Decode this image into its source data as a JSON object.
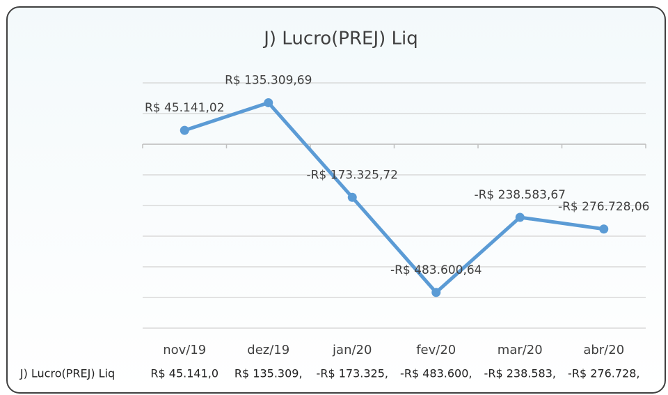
{
  "chart_data": {
    "type": "line",
    "title": "J) Lucro(PREJ) Liq",
    "categories": [
      "nov/19",
      "dez/19",
      "jan/20",
      "fev/20",
      "mar/20",
      "abr/20"
    ],
    "series": [
      {
        "name": "J) Lucro(PREJ) Liq",
        "color": "#5b9bd5",
        "values": [
          45141.02,
          135309.69,
          -173325.72,
          -483600.64,
          -238583.67,
          -276728.06
        ],
        "value_labels": [
          "R$ 45.141,02",
          "R$ 135.309,69",
          "-R$ 173.325,72",
          "-R$ 483.600,64",
          "-R$ 238.583,67",
          "-R$ 276.728,06"
        ]
      }
    ],
    "ylim": [
      -600000,
      200000
    ],
    "yticks": [
      -600000,
      -500000,
      -400000,
      -300000,
      -200000,
      -100000,
      0,
      100000,
      200000
    ],
    "grid": true,
    "data_table": [
      "R$ 45.141,0",
      "R$ 135.309,",
      "-R$ 173.325,",
      "-R$ 483.600,",
      "-R$ 238.583,",
      "-R$ 276.728,"
    ]
  }
}
